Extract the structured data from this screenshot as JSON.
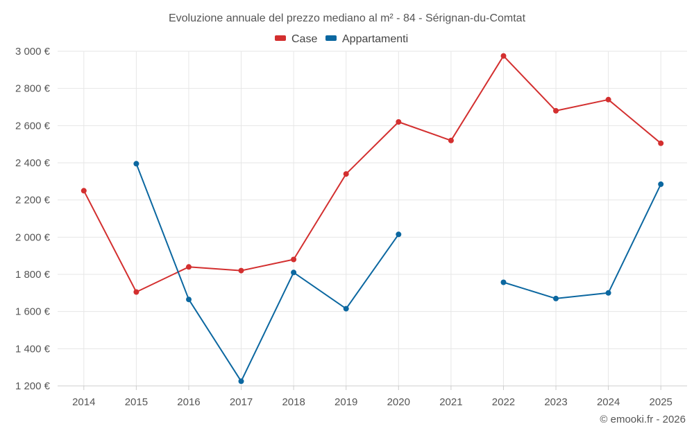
{
  "chart_data": {
    "type": "line",
    "title": "Evoluzione annuale del prezzo mediano al m² - 84 - Sérignan-du-Comtat",
    "categories": [
      "2014",
      "2015",
      "2016",
      "2017",
      "2018",
      "2019",
      "2020",
      "2021",
      "2022",
      "2023",
      "2024",
      "2025"
    ],
    "ylim": [
      1200,
      3000
    ],
    "yticks": [
      1200,
      1400,
      1600,
      1800,
      2000,
      2200,
      2400,
      2600,
      2800,
      3000
    ],
    "ytick_labels": [
      "1 200 €",
      "1 400 €",
      "1 600 €",
      "1 800 €",
      "2 000 €",
      "2 200 €",
      "2 400 €",
      "2 600 €",
      "2 800 €",
      "3 000 €"
    ],
    "legend_position": "top-center",
    "grid": true,
    "series": [
      {
        "name": "Case",
        "color": "#d32f2f",
        "values": [
          2250,
          1705,
          1840,
          1820,
          1880,
          2340,
          2620,
          2520,
          2975,
          2680,
          2740,
          2505
        ]
      },
      {
        "name": "Appartamenti",
        "color": "#0b67a0",
        "values": [
          null,
          2395,
          1665,
          1225,
          1810,
          1615,
          2015,
          null,
          1757,
          1670,
          1700,
          2285
        ]
      }
    ]
  },
  "credit": "© emooki.fr - 2026"
}
